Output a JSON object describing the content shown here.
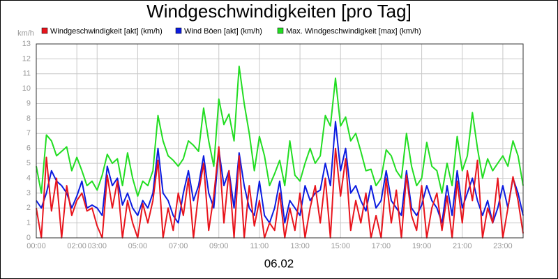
{
  "chart_data": {
    "type": "line",
    "title": "Windgeschwindigkeiten [pro Tag]",
    "x_label": "06.02",
    "y_label": "km/h",
    "x": [
      0,
      0.25,
      0.5,
      0.75,
      1,
      1.25,
      1.5,
      1.75,
      2,
      2.25,
      2.5,
      2.75,
      3,
      3.25,
      3.5,
      3.75,
      4,
      4.25,
      4.5,
      4.75,
      5,
      5.25,
      5.5,
      5.75,
      6,
      6.25,
      6.5,
      6.75,
      7,
      7.25,
      7.5,
      7.75,
      8,
      8.25,
      8.5,
      8.75,
      9,
      9.25,
      9.5,
      9.75,
      10,
      10.25,
      10.5,
      10.75,
      11,
      11.25,
      11.5,
      11.75,
      12,
      12.25,
      12.5,
      12.75,
      13,
      13.25,
      13.5,
      13.75,
      14,
      14.25,
      14.5,
      14.75,
      15,
      15.25,
      15.5,
      15.75,
      16,
      16.25,
      16.5,
      16.75,
      17,
      17.25,
      17.5,
      17.75,
      18,
      18.25,
      18.5,
      18.75,
      19,
      19.25,
      19.5,
      19.75,
      20,
      20.25,
      20.5,
      20.75,
      21,
      21.25,
      21.5,
      21.75,
      22,
      22.25,
      22.5,
      22.75,
      23,
      23.25,
      23.5,
      23.75,
      24
    ],
    "series": [
      {
        "name": "Windgeschwindigkeit [akt] (km/h)",
        "color": "#e8141c",
        "values": [
          2.0,
          0,
          5.4,
          1.8,
          4.0,
          0,
          3.5,
          1.5,
          2.5,
          3.0,
          1.8,
          2.0,
          0.8,
          0,
          4.2,
          2.0,
          3.8,
          0,
          2.5,
          1.0,
          0,
          2.3,
          1.0,
          2.5,
          5.2,
          0,
          2.0,
          0.5,
          3.0,
          1.5,
          4.0,
          0,
          3.0,
          5.0,
          0.5,
          2.8,
          6.1,
          1.0,
          4.5,
          0,
          5.5,
          0,
          3.5,
          0.8,
          2.5,
          0,
          1.0,
          0.5,
          3.0,
          0,
          2.0,
          0.5,
          3.0,
          0,
          2.0,
          3.5,
          1.0,
          4.0,
          0,
          6.0,
          2.8,
          5.3,
          0.5,
          2.5,
          1.0,
          3.0,
          0,
          1.5,
          0,
          4.0,
          1.0,
          3.2,
          0,
          4.2,
          1.5,
          0.5,
          3.5,
          0,
          2.0,
          3.0,
          0.5,
          2.8,
          0,
          3.8,
          1.0,
          4.5,
          2.5,
          5.2,
          0,
          2.0,
          1.0,
          4.0,
          0,
          2.0,
          4.1,
          2.5,
          0.3
        ]
      },
      {
        "name": "Wind Böen [akt] (km/h)",
        "color": "#0b1be0",
        "values": [
          2.5,
          2.0,
          3.0,
          4.5,
          3.8,
          3.5,
          3.0,
          2.0,
          2.8,
          3.8,
          2.0,
          2.2,
          2.0,
          1.5,
          4.8,
          3.5,
          4.0,
          2.2,
          3.0,
          2.0,
          1.5,
          2.5,
          2.0,
          3.0,
          6.0,
          3.0,
          2.5,
          1.5,
          1.0,
          3.0,
          4.5,
          2.5,
          3.5,
          5.5,
          3.0,
          2.0,
          5.9,
          3.5,
          4.5,
          2.0,
          5.7,
          3.5,
          2.0,
          1.5,
          3.8,
          1.5,
          1.0,
          2.0,
          3.8,
          1.0,
          2.5,
          2.0,
          1.5,
          3.5,
          2.5,
          3.0,
          3.2,
          5.0,
          3.5,
          7.8,
          4.5,
          6.0,
          3.0,
          3.5,
          2.5,
          1.8,
          3.5,
          2.0,
          2.5,
          4.5,
          2.5,
          2.0,
          1.5,
          4.5,
          2.0,
          1.5,
          2.2,
          3.5,
          2.5,
          2.0,
          1.0,
          3.5,
          1.5,
          4.5,
          2.0,
          3.0,
          4.0,
          2.5,
          1.5,
          2.5,
          1.0,
          2.0,
          3.5,
          2.0,
          4.0,
          3.0,
          1.5
        ]
      },
      {
        "name": "Max. Windgeschwindigkeit [max] (km/h)",
        "color": "#22dd22",
        "values": [
          4.8,
          3,
          6.9,
          6.5,
          5.5,
          5.8,
          6.1,
          4.5,
          5.4,
          4.5,
          3.5,
          3.8,
          3.2,
          4.2,
          5.6,
          5.0,
          5.3,
          3.5,
          5.7,
          4.0,
          2.8,
          3.8,
          3.5,
          4.5,
          8.2,
          6.5,
          5.5,
          5.2,
          4.8,
          5.3,
          6.5,
          6.2,
          5.8,
          8.7,
          6.5,
          4.8,
          9.3,
          7.6,
          8.3,
          6.5,
          11.5,
          9.0,
          7.0,
          4.5,
          6.8,
          5.5,
          3.5,
          4.3,
          5.2,
          3.5,
          6.5,
          4.2,
          3.8,
          5.0,
          6.0,
          5.0,
          5.5,
          8.2,
          7.5,
          10.7,
          7.5,
          8.1,
          6.5,
          7.0,
          5.8,
          4.5,
          4.6,
          3.5,
          4.0,
          5.9,
          5.5,
          4.5,
          4.0,
          7.0,
          4.8,
          3.5,
          4.0,
          6.4,
          4.8,
          4.5,
          3.0,
          5.0,
          3.5,
          6.8,
          4.5,
          5.5,
          8.4,
          6.0,
          4.0,
          5.3,
          4.5,
          5.0,
          5.5,
          4.8,
          6.5,
          5.5,
          3.5
        ]
      }
    ],
    "xlim": [
      0,
      24
    ],
    "xticks": [
      {
        "value": 0,
        "label": "00:00"
      },
      {
        "value": 2,
        "label": "02:00"
      },
      {
        "value": 3,
        "label": "03:00"
      },
      {
        "value": 5,
        "label": "05:00"
      },
      {
        "value": 7,
        "label": "07:00"
      },
      {
        "value": 9,
        "label": "09:00"
      },
      {
        "value": 11,
        "label": "11:00"
      },
      {
        "value": 13,
        "label": "13:00"
      },
      {
        "value": 15,
        "label": "15:00"
      },
      {
        "value": 17,
        "label": "17:00"
      },
      {
        "value": 19,
        "label": "19:00"
      },
      {
        "value": 21,
        "label": "21:00"
      },
      {
        "value": 23,
        "label": "23:00"
      }
    ],
    "ylim": [
      0,
      13
    ],
    "yticks": [
      0,
      1,
      2,
      3,
      4,
      5,
      6,
      7,
      8,
      9,
      10,
      11,
      12,
      13
    ],
    "grid": true
  }
}
